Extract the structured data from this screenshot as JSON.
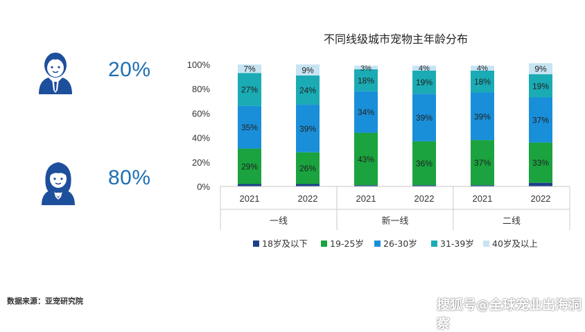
{
  "left_panel": {
    "male": {
      "icon": "man-avatar-icon",
      "percent": "20%"
    },
    "female": {
      "icon": "woman-avatar-icon",
      "percent": "80%"
    }
  },
  "colors": {
    "accent": "#1e6fb3",
    "series": [
      "#1d3f8c",
      "#1aa33e",
      "#1a8fd9",
      "#1aabb4",
      "#c7e4f3"
    ]
  },
  "chart_data": {
    "type": "bar",
    "stacked": true,
    "title": "不同线级城市宠物主年龄分布",
    "categories": [
      "2021",
      "2022",
      "2021",
      "2022",
      "2021",
      "2022"
    ],
    "groups": [
      {
        "label": "一线",
        "span": 2
      },
      {
        "label": "新一线",
        "span": 2
      },
      {
        "label": "二线",
        "span": 2
      }
    ],
    "ylim": [
      0,
      100
    ],
    "yticks": [
      "0%",
      "20%",
      "40%",
      "60%",
      "80%",
      "100%"
    ],
    "legend_position": "bottom",
    "series": [
      {
        "name": "18岁及以下",
        "values": [
          2,
          2,
          1,
          1,
          1,
          3
        ],
        "labels": [
          "",
          "",
          "",
          "",
          "",
          ""
        ]
      },
      {
        "name": "19-25岁",
        "values": [
          29,
          26,
          43,
          36,
          37,
          33
        ],
        "labels": [
          "29%",
          "26%",
          "43%",
          "36%",
          "37%",
          "33%"
        ]
      },
      {
        "name": "26-30岁",
        "values": [
          35,
          39,
          34,
          39,
          39,
          37
        ],
        "labels": [
          "35%",
          "39%",
          "34%",
          "39%",
          "39%",
          "37%"
        ]
      },
      {
        "name": "31-39岁",
        "values": [
          27,
          24,
          18,
          19,
          18,
          19
        ],
        "labels": [
          "27%",
          "24%",
          "18%",
          "19%",
          "18%",
          "19%"
        ]
      },
      {
        "name": "40岁及以上",
        "values": [
          7,
          9,
          3,
          4,
          4,
          9
        ],
        "labels": [
          "7%",
          "9%",
          "3%",
          "4%",
          "4%",
          "9%"
        ]
      }
    ]
  },
  "source_text": "数据来源：亚宠研究院",
  "watermark_text": "搜狐号@全球宠业出海洞察"
}
